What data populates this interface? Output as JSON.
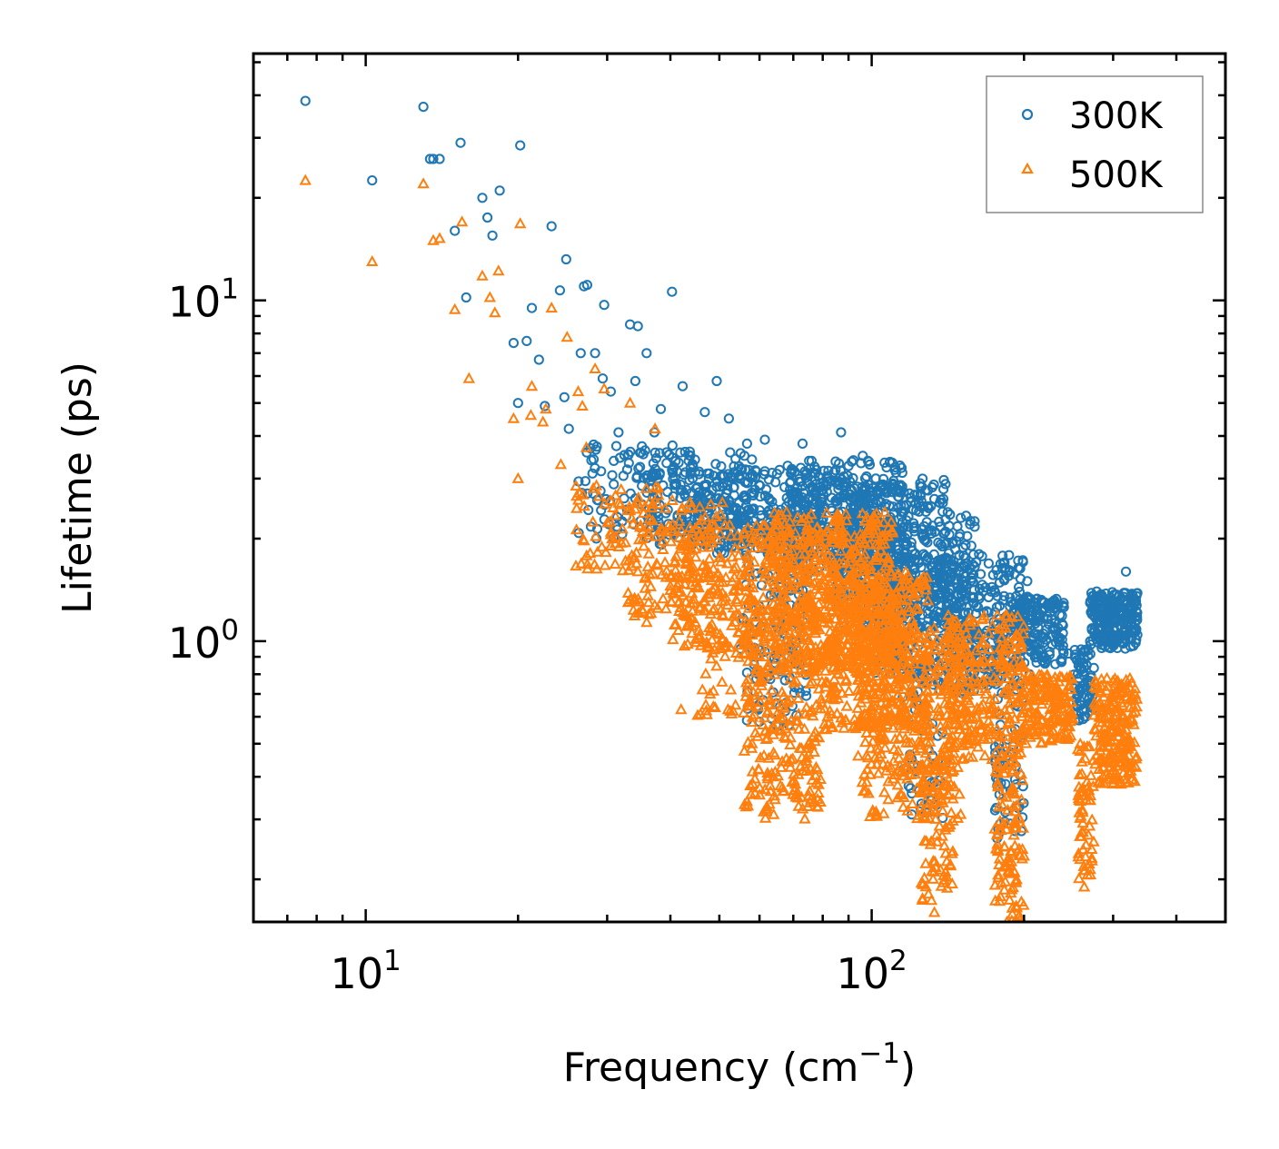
{
  "chart_data": {
    "type": "scatter",
    "xscale": "log",
    "yscale": "log",
    "xlim": [
      6.0,
      500.0
    ],
    "ylim": [
      0.15,
      53.0
    ],
    "xlabel": "Frequency (cm",
    "xlabel_sup": "−1",
    "xlabel_end": ")",
    "ylabel": "Lifetime (ps)",
    "x_ticks": [
      {
        "value": 10,
        "base": "10",
        "exp": "1"
      },
      {
        "value": 100,
        "base": "10",
        "exp": "2"
      }
    ],
    "y_ticks": [
      {
        "value": 1,
        "base": "10",
        "exp": "0"
      },
      {
        "value": 10,
        "base": "10",
        "exp": "1"
      }
    ],
    "legend_position": "top-right",
    "series": [
      {
        "name": "300K",
        "marker": "circle",
        "color": "#1f77b4",
        "points": [
          [
            7.6,
            38.5
          ],
          [
            10.3,
            22.5
          ],
          [
            13.0,
            37.0
          ],
          [
            13.4,
            26.0
          ],
          [
            13.6,
            26.0
          ],
          [
            14.0,
            26.0
          ],
          [
            15.0,
            16.0
          ],
          [
            15.4,
            29.0
          ],
          [
            15.8,
            10.2
          ],
          [
            17.0,
            20.0
          ],
          [
            17.4,
            17.5
          ],
          [
            17.8,
            15.5
          ],
          [
            18.4,
            21.0
          ],
          [
            19.6,
            7.5
          ],
          [
            20.2,
            28.5
          ],
          [
            20.8,
            7.6
          ],
          [
            21.3,
            9.5
          ],
          [
            22.0,
            6.7
          ],
          [
            23.3,
            16.5
          ],
          [
            24.2,
            10.7
          ],
          [
            24.9,
            13.2
          ],
          [
            26.6,
            7.0
          ],
          [
            27.0,
            11.0
          ],
          [
            27.4,
            11.1
          ],
          [
            28.4,
            7.0
          ],
          [
            29.6,
            9.7
          ],
          [
            30.5,
            5.4
          ],
          [
            33.3,
            8.5
          ],
          [
            34.5,
            8.4
          ],
          [
            35.9,
            7.0
          ],
          [
            38.3,
            4.8
          ],
          [
            40.3,
            10.6
          ],
          [
            42.3,
            5.6
          ],
          [
            46.8,
            4.7
          ],
          [
            49.4,
            5.8
          ],
          [
            52.2,
            4.5
          ],
          [
            22.6,
            4.9
          ],
          [
            24.7,
            5.2
          ],
          [
            31.6,
            4.1
          ],
          [
            37.2,
            4.1
          ],
          [
            29.4,
            5.9
          ],
          [
            34.1,
            5.8
          ],
          [
            43.7,
            3.6
          ],
          [
            20.0,
            5.0
          ],
          [
            25.2,
            4.2
          ],
          [
            56.7,
            3.8
          ],
          [
            61.5,
            3.9
          ],
          [
            73.0,
            3.8
          ],
          [
            87.0,
            4.1
          ],
          [
            96.0,
            3.5
          ],
          [
            110.0,
            2.9
          ],
          [
            124.0,
            2.4
          ],
          [
            137.0,
            2.6
          ],
          [
            150.0,
            2.3
          ],
          [
            163.0,
            1.8
          ],
          [
            183.0,
            1.7
          ],
          [
            203.0,
            1.5
          ],
          [
            245.0,
            0.92
          ],
          [
            265.0,
            0.6
          ],
          [
            290.0,
            1.3
          ],
          [
            318.0,
            1.6
          ],
          [
            60.0,
            0.58
          ],
          [
            120.0,
            0.31
          ],
          [
            178.0,
            0.27
          ],
          [
            205.0,
            0.8
          ]
        ],
        "clusters": [
          {
            "x": [
              26,
              45
            ],
            "y": [
              2.0,
              3.8
            ],
            "n": 120
          },
          {
            "x": [
              36,
              58
            ],
            "y": [
              1.9,
              3.6
            ],
            "n": 150
          },
          {
            "x": [
              45,
              80
            ],
            "y": [
              1.8,
              3.2
            ],
            "n": 260
          },
          {
            "x": [
              55,
              75
            ],
            "y": [
              0.55,
              2.2
            ],
            "n": 160
          },
          {
            "x": [
              68,
              115
            ],
            "y": [
              1.6,
              3.4
            ],
            "n": 380
          },
          {
            "x": [
              85,
              140
            ],
            "y": [
              1.1,
              3.0
            ],
            "n": 380
          },
          {
            "x": [
              100,
              160
            ],
            "y": [
              0.8,
              2.4
            ],
            "n": 300
          },
          {
            "x": [
              135,
              200
            ],
            "y": [
              0.7,
              1.8
            ],
            "n": 300
          },
          {
            "x": [
              115,
              140
            ],
            "y": [
              0.3,
              0.9
            ],
            "n": 60
          },
          {
            "x": [
              175,
              200
            ],
            "y": [
              0.26,
              0.7
            ],
            "n": 60
          },
          {
            "x": [
              195,
              240
            ],
            "y": [
              0.85,
              1.35
            ],
            "n": 160
          },
          {
            "x": [
              250,
              275
            ],
            "y": [
              0.58,
              0.95
            ],
            "n": 70
          },
          {
            "x": [
              270,
              335
            ],
            "y": [
              0.95,
              1.4
            ],
            "n": 240
          }
        ]
      },
      {
        "name": "500K",
        "marker": "triangle",
        "color": "#ff7f0e",
        "points": [
          [
            7.6,
            22.5
          ],
          [
            10.3,
            13.0
          ],
          [
            13.0,
            22.0
          ],
          [
            13.6,
            15.0
          ],
          [
            14.0,
            15.2
          ],
          [
            15.0,
            9.4
          ],
          [
            15.5,
            17.0
          ],
          [
            16.0,
            5.9
          ],
          [
            17.0,
            11.8
          ],
          [
            17.6,
            10.2
          ],
          [
            18.0,
            9.2
          ],
          [
            18.3,
            12.2
          ],
          [
            19.6,
            4.5
          ],
          [
            20.2,
            16.8
          ],
          [
            21.3,
            5.6
          ],
          [
            20.0,
            3.0
          ],
          [
            21.2,
            4.6
          ],
          [
            22.4,
            4.4
          ],
          [
            22.7,
            4.8
          ],
          [
            23.3,
            9.5
          ],
          [
            24.3,
            3.3
          ],
          [
            25.0,
            7.8
          ],
          [
            26.3,
            5.4
          ],
          [
            26.8,
            4.9
          ],
          [
            27.3,
            3.7
          ],
          [
            28.4,
            6.3
          ],
          [
            29.6,
            5.5
          ],
          [
            33.3,
            5.0
          ],
          [
            37.3,
            4.2
          ],
          [
            42.0,
            0.63
          ],
          [
            46.3,
            0.72
          ],
          [
            47.0,
            0.65
          ],
          [
            52.0,
            0.63
          ],
          [
            58.0,
            0.5
          ],
          [
            75.0,
            0.5
          ],
          [
            92.0,
            0.56
          ],
          [
            94.0,
            0.46
          ],
          [
            98.0,
            0.42
          ],
          [
            133.0,
            0.16
          ],
          [
            185.0,
            0.15
          ],
          [
            263.0,
            0.19
          ],
          [
            300.0,
            0.55
          ],
          [
            240.0,
            0.58
          ],
          [
            173.0,
            0.45
          ],
          [
            64.0,
            0.31
          ]
        ],
        "clusters": [
          {
            "x": [
              26,
              38
            ],
            "y": [
              1.6,
              2.9
            ],
            "n": 80
          },
          {
            "x": [
              33,
              52
            ],
            "y": [
              1.1,
              2.6
            ],
            "n": 140
          },
          {
            "x": [
              40,
              62
            ],
            "y": [
              0.95,
              2.2
            ],
            "n": 180
          },
          {
            "x": [
              45,
              60
            ],
            "y": [
              0.6,
              1.1
            ],
            "n": 60
          },
          {
            "x": [
              56,
              80
            ],
            "y": [
              0.3,
              1.8
            ],
            "n": 330
          },
          {
            "x": [
              62,
              110
            ],
            "y": [
              0.8,
              2.4
            ],
            "n": 550
          },
          {
            "x": [
              80,
              130
            ],
            "y": [
              0.55,
              1.6
            ],
            "n": 420
          },
          {
            "x": [
              95,
              150
            ],
            "y": [
              0.3,
              1.1
            ],
            "n": 350
          },
          {
            "x": [
              125,
              145
            ],
            "y": [
              0.17,
              0.45
            ],
            "n": 80
          },
          {
            "x": [
              140,
              200
            ],
            "y": [
              0.45,
              1.2
            ],
            "n": 280
          },
          {
            "x": [
              175,
              200
            ],
            "y": [
              0.15,
              0.45
            ],
            "n": 110
          },
          {
            "x": [
              200,
              250
            ],
            "y": [
              0.5,
              0.8
            ],
            "n": 160
          },
          {
            "x": [
              255,
              275
            ],
            "y": [
              0.2,
              0.5
            ],
            "n": 60
          },
          {
            "x": [
              275,
              335
            ],
            "y": [
              0.38,
              0.78
            ],
            "n": 220
          }
        ]
      }
    ]
  }
}
